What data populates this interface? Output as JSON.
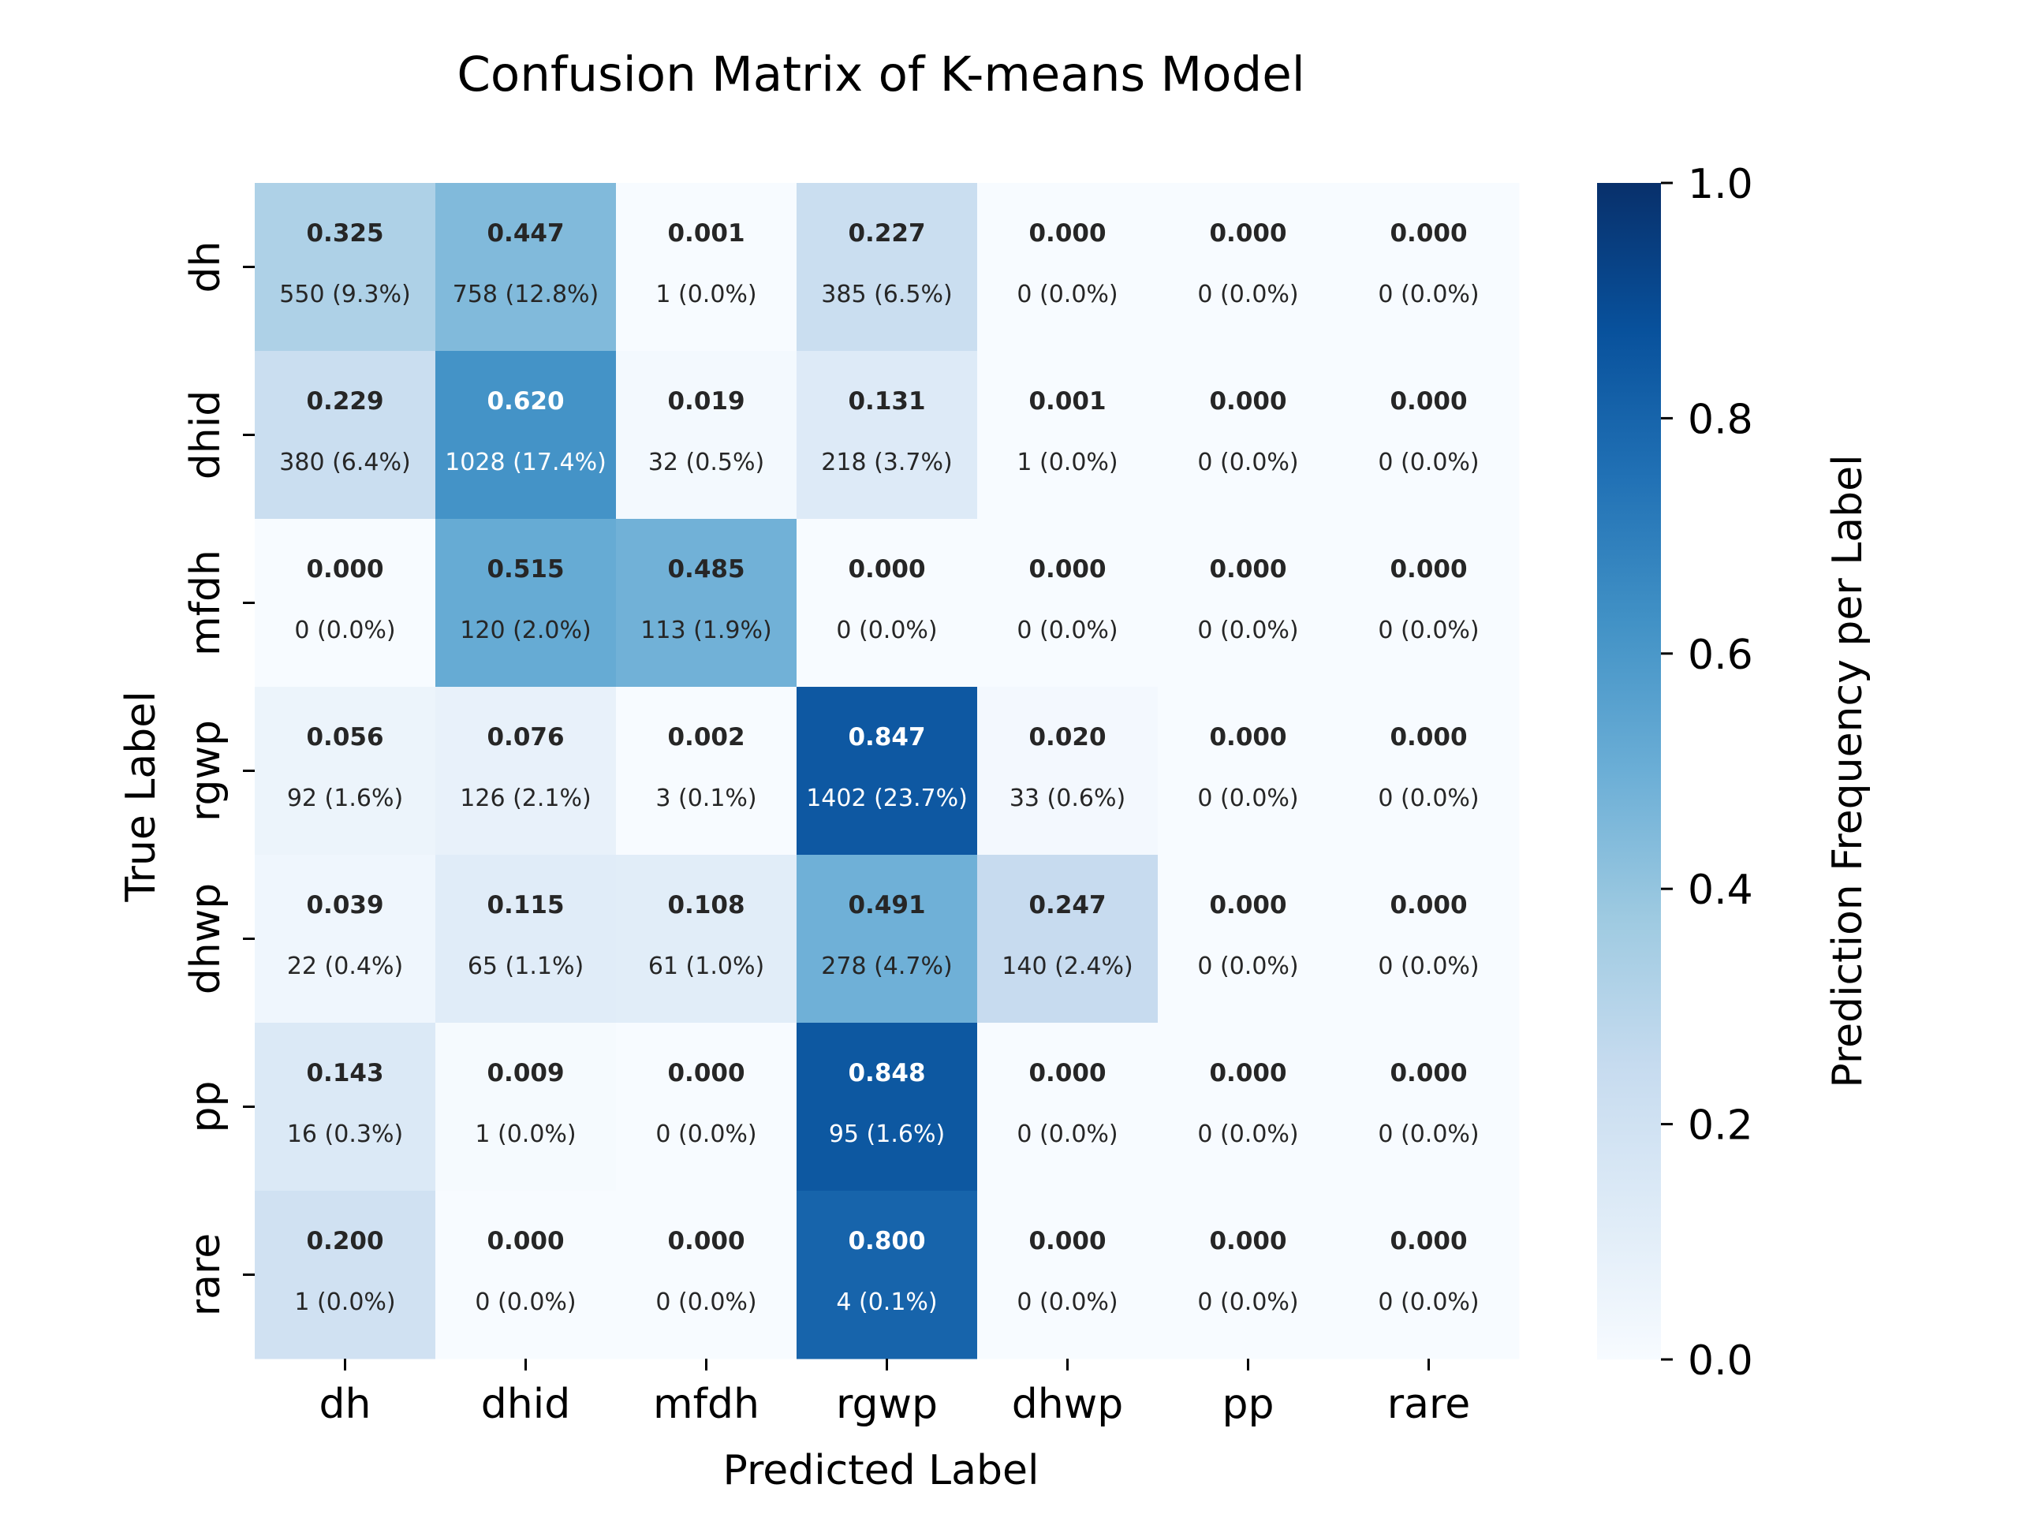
{
  "chart_data": {
    "type": "heatmap",
    "title": "Confusion Matrix of K-means Model",
    "xlabel": "Predicted Label",
    "ylabel": "True Label",
    "x_categories": [
      "dh",
      "dhid",
      "mfdh",
      "rgwp",
      "dhwp",
      "pp",
      "rare"
    ],
    "y_categories": [
      "dh",
      "dhid",
      "mfdh",
      "rgwp",
      "dhwp",
      "pp",
      "rare"
    ],
    "values": [
      [
        0.325,
        0.447,
        0.001,
        0.227,
        0.0,
        0.0,
        0.0
      ],
      [
        0.229,
        0.62,
        0.019,
        0.131,
        0.001,
        0.0,
        0.0
      ],
      [
        0.0,
        0.515,
        0.485,
        0.0,
        0.0,
        0.0,
        0.0
      ],
      [
        0.056,
        0.076,
        0.002,
        0.847,
        0.02,
        0.0,
        0.0
      ],
      [
        0.039,
        0.115,
        0.108,
        0.491,
        0.247,
        0.0,
        0.0
      ],
      [
        0.143,
        0.009,
        0.0,
        0.848,
        0.0,
        0.0,
        0.0
      ],
      [
        0.2,
        0.0,
        0.0,
        0.8,
        0.0,
        0.0,
        0.0
      ]
    ],
    "value_labels": [
      [
        "0.325",
        "0.447",
        "0.001",
        "0.227",
        "0.000",
        "0.000",
        "0.000"
      ],
      [
        "0.229",
        "0.620",
        "0.019",
        "0.131",
        "0.001",
        "0.000",
        "0.000"
      ],
      [
        "0.000",
        "0.515",
        "0.485",
        "0.000",
        "0.000",
        "0.000",
        "0.000"
      ],
      [
        "0.056",
        "0.076",
        "0.002",
        "0.847",
        "0.020",
        "0.000",
        "0.000"
      ],
      [
        "0.039",
        "0.115",
        "0.108",
        "0.491",
        "0.247",
        "0.000",
        "0.000"
      ],
      [
        "0.143",
        "0.009",
        "0.000",
        "0.848",
        "0.000",
        "0.000",
        "0.000"
      ],
      [
        "0.200",
        "0.000",
        "0.000",
        "0.800",
        "0.000",
        "0.000",
        "0.000"
      ]
    ],
    "count_labels": [
      [
        "550 (9.3%)",
        "758 (12.8%)",
        "1 (0.0%)",
        "385 (6.5%)",
        "0 (0.0%)",
        "0 (0.0%)",
        "0 (0.0%)"
      ],
      [
        "380 (6.4%)",
        "1028 (17.4%)",
        "32 (0.5%)",
        "218 (3.7%)",
        "1 (0.0%)",
        "0 (0.0%)",
        "0 (0.0%)"
      ],
      [
        "0 (0.0%)",
        "120 (2.0%)",
        "113 (1.9%)",
        "0 (0.0%)",
        "0 (0.0%)",
        "0 (0.0%)",
        "0 (0.0%)"
      ],
      [
        "92 (1.6%)",
        "126 (2.1%)",
        "3 (0.1%)",
        "1402 (23.7%)",
        "33 (0.6%)",
        "0 (0.0%)",
        "0 (0.0%)"
      ],
      [
        "22 (0.4%)",
        "65 (1.1%)",
        "61 (1.0%)",
        "278 (4.7%)",
        "140 (2.4%)",
        "0 (0.0%)",
        "0 (0.0%)"
      ],
      [
        "16 (0.3%)",
        "1 (0.0%)",
        "0 (0.0%)",
        "95 (1.6%)",
        "0 (0.0%)",
        "0 (0.0%)",
        "0 (0.0%)"
      ],
      [
        "1 (0.0%)",
        "0 (0.0%)",
        "0 (0.0%)",
        "4 (0.1%)",
        "0 (0.0%)",
        "0 (0.0%)",
        "0 (0.0%)"
      ]
    ],
    "colorbar": {
      "label": "Prediction Frequency per Label",
      "range": [
        0,
        1
      ],
      "ticks": [
        0.0,
        0.2,
        0.4,
        0.6,
        0.8,
        1.0
      ],
      "tick_labels": [
        "0.0",
        "0.2",
        "0.4",
        "0.6",
        "0.8",
        "1.0"
      ],
      "colormap": "Blues",
      "stops": [
        "#f7fbff",
        "#deebf7",
        "#c6dbef",
        "#9ecae1",
        "#6baed6",
        "#4292c6",
        "#2171b5",
        "#08519c",
        "#08306b"
      ]
    },
    "grid": false
  }
}
